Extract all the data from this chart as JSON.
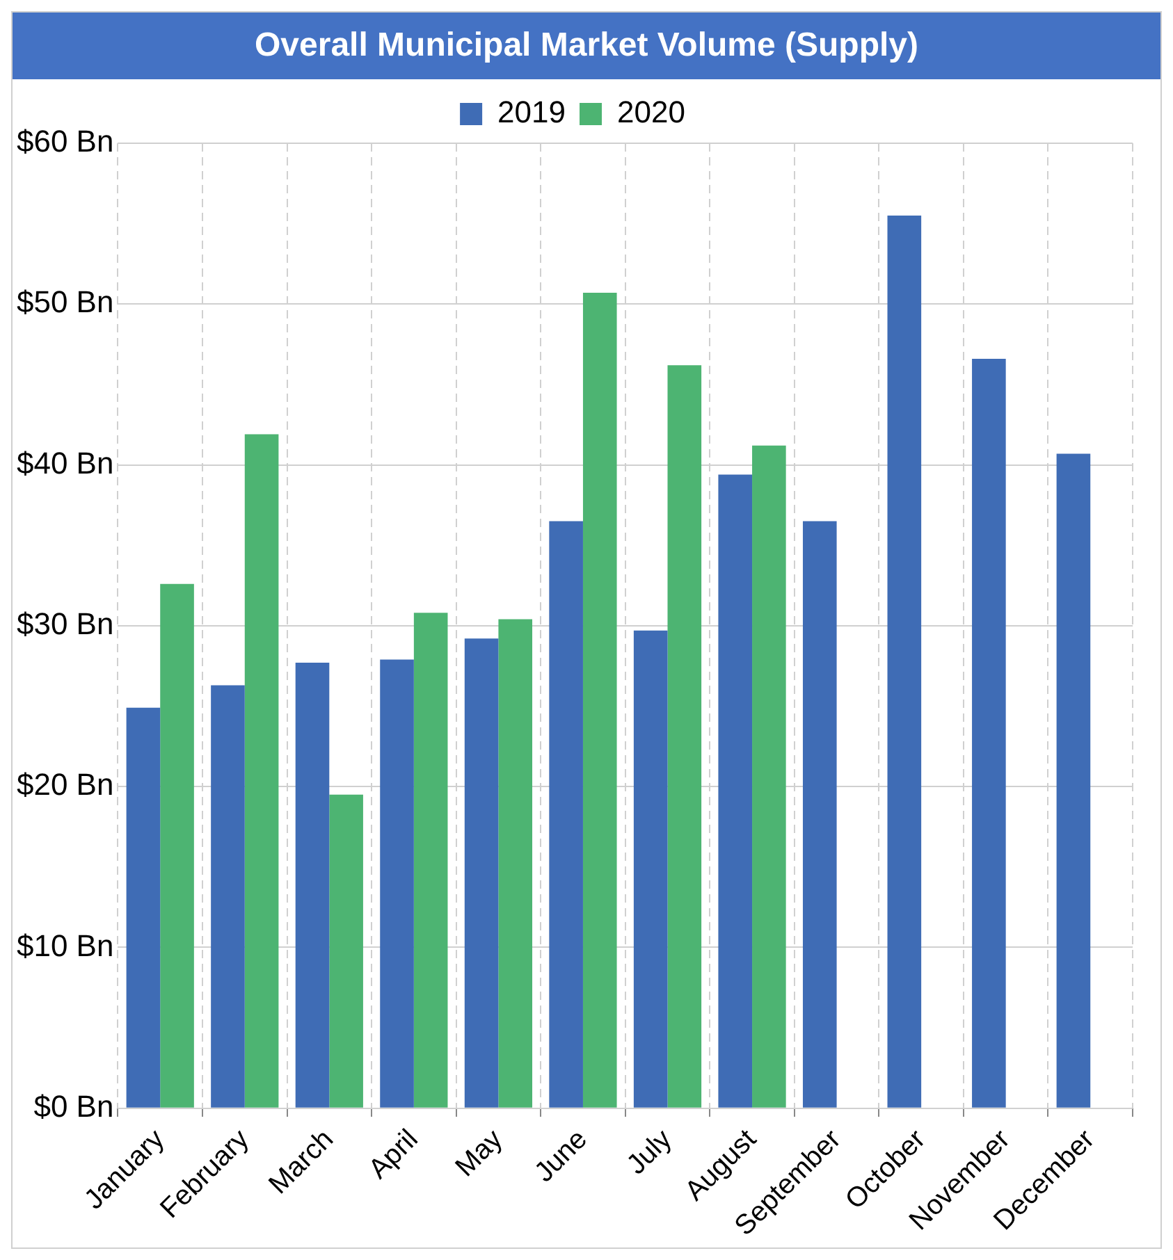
{
  "chart_data": {
    "type": "bar",
    "title": "Overall Municipal Market Volume (Supply)",
    "categories": [
      "January",
      "February",
      "March",
      "April",
      "May",
      "June",
      "July",
      "August",
      "September",
      "October",
      "November",
      "December"
    ],
    "series": [
      {
        "name": "2019",
        "color": "#3f6cb5",
        "values": [
          24.9,
          26.3,
          27.7,
          27.9,
          29.2,
          36.5,
          29.7,
          39.4,
          36.5,
          55.5,
          46.6,
          40.7
        ]
      },
      {
        "name": "2020",
        "color": "#4db472",
        "values": [
          32.6,
          41.9,
          19.5,
          30.8,
          30.4,
          50.7,
          46.2,
          41.2,
          null,
          null,
          null,
          null
        ]
      }
    ],
    "ylim": [
      0,
      60
    ],
    "yticks": [
      {
        "value": 0,
        "label": "$0 Bn"
      },
      {
        "value": 10,
        "label": "$10 Bn"
      },
      {
        "value": 20,
        "label": "$20 Bn"
      },
      {
        "value": 30,
        "label": "$30 Bn"
      },
      {
        "value": 40,
        "label": "$40 Bn"
      },
      {
        "value": 50,
        "label": "$50 Bn"
      },
      {
        "value": 60,
        "label": "$60 Bn"
      }
    ],
    "grid": true,
    "legend": "top"
  }
}
